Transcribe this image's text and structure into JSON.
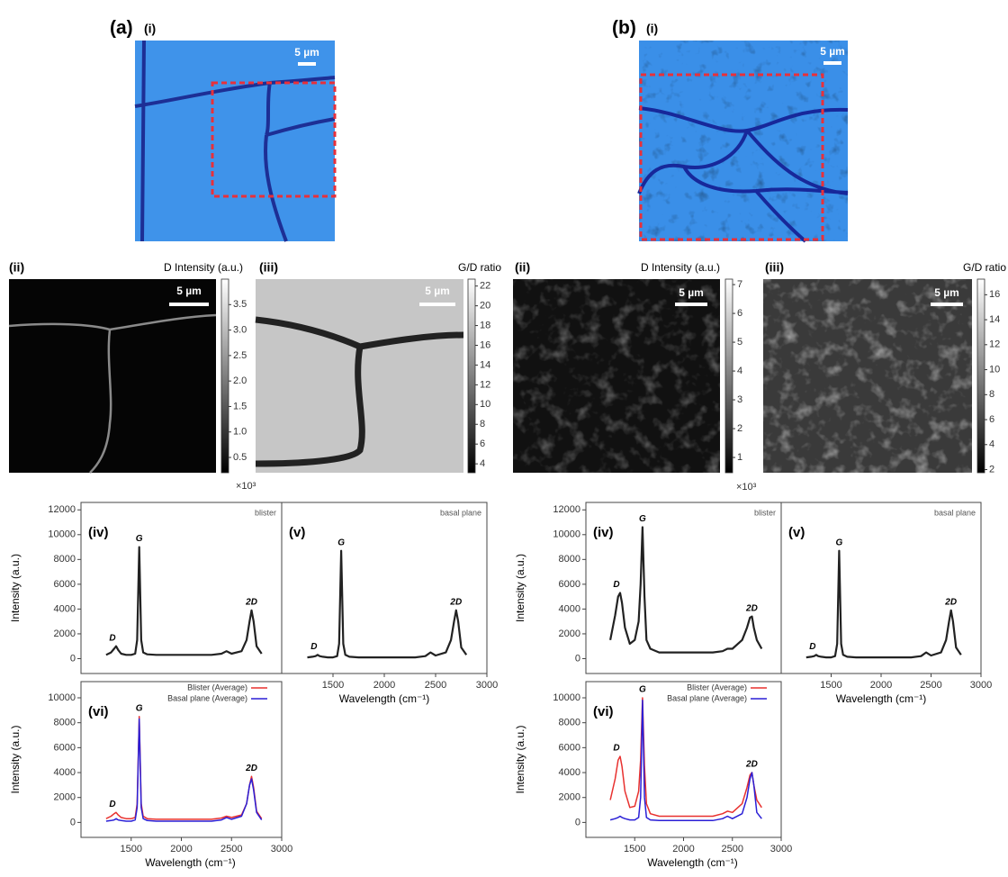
{
  "figure": {
    "panels": [
      {
        "label": "(a)",
        "optical": {
          "label": "(i)",
          "scale": "5 µm"
        },
        "maps": [
          {
            "label": "(ii)",
            "title": "D Intensity (a.u.)",
            "scale": "5 µm",
            "colorbar": {
              "lim": [
                0.2,
                4.0
              ],
              "ticks": [
                0.5,
                {
                  "value": 1,
                  "label": "1.0"
                },
                1.5,
                {
                  "value": 2,
                  "label": "2.0"
                },
                2.5,
                {
                  "value": 3,
                  "label": "3.0"
                },
                3.5
              ]
            },
            "multiplier": "×10³"
          },
          {
            "label": "(iii)",
            "title": "G/D ratio",
            "scale": "5 µm",
            "colorbar": {
              "lim": [
                3.1,
                22.7
              ],
              "ticks": [
                4,
                6,
                8,
                10,
                12,
                14,
                16,
                18,
                20,
                22
              ]
            }
          }
        ]
      },
      {
        "label": "(b)",
        "optical": {
          "label": "(i)",
          "scale": "5 µm"
        },
        "maps": [
          {
            "label": "(ii)",
            "title": "D Intensity (a.u.)",
            "scale": "5 µm",
            "colorbar": {
              "lim": [
                0.47,
                7.19
              ],
              "ticks": [
                1,
                2,
                3,
                4,
                5,
                6,
                7
              ]
            },
            "multiplier": "×10³"
          },
          {
            "label": "(iii)",
            "title": "G/D ratio",
            "scale": "5 µm",
            "colorbar": {
              "lim": [
                1.75,
                17.25
              ],
              "ticks": [
                2,
                4,
                6,
                8,
                10,
                12,
                14,
                16
              ]
            }
          }
        ]
      }
    ]
  },
  "chart_data": [
    {
      "type": "line",
      "panel": "(iv)",
      "note": "blister",
      "peaks": [
        "D",
        "G",
        "2D"
      ],
      "ylabel": "Intensity (a.u.)",
      "x": [
        1250,
        1300,
        1330,
        1350,
        1370,
        1400,
        1450,
        1500,
        1540,
        1560,
        1580,
        1600,
        1620,
        1660,
        1750,
        1900,
        2100,
        2300,
        2400,
        2450,
        2500,
        2600,
        2650,
        2680,
        2700,
        2720,
        2750,
        2800
      ],
      "xlim": [
        1000,
        3000
      ],
      "ylim": [
        -1200,
        12600
      ],
      "yticks": [
        0,
        2000,
        4000,
        6000,
        8000,
        10000,
        12000
      ],
      "series": [
        {
          "color": "#222222",
          "values": [
            300,
            500,
            800,
            1000,
            700,
            400,
            300,
            300,
            400,
            1500,
            9000,
            1500,
            500,
            350,
            300,
            300,
            300,
            300,
            400,
            600,
            400,
            600,
            1500,
            3000,
            3900,
            3000,
            1000,
            400
          ]
        }
      ]
    },
    {
      "type": "line",
      "panel": "(v)",
      "note": "basal plane",
      "peaks": [
        "D",
        "G",
        "2D"
      ],
      "xlabel": "Wavelength (cm⁻¹)",
      "x": [
        1250,
        1300,
        1330,
        1350,
        1370,
        1400,
        1450,
        1500,
        1540,
        1560,
        1580,
        1600,
        1620,
        1660,
        1750,
        1900,
        2100,
        2300,
        2400,
        2450,
        2500,
        2600,
        2650,
        2680,
        2700,
        2720,
        2750,
        2800
      ],
      "xlim": [
        1000,
        3000
      ],
      "ylim": [
        -1200,
        12600
      ],
      "xticks": [
        1500,
        2000,
        2500,
        3000
      ],
      "series": [
        {
          "color": "#222222",
          "values": [
            100,
            150,
            200,
            300,
            200,
            150,
            100,
            100,
            200,
            1200,
            8700,
            1200,
            300,
            150,
            100,
            100,
            100,
            100,
            200,
            500,
            250,
            500,
            1500,
            3000,
            3900,
            3000,
            900,
            300
          ]
        }
      ]
    },
    {
      "type": "line",
      "panel": "(vi)",
      "peaks": [
        "D",
        "G",
        "2D"
      ],
      "ylabel": "Intensity (a.u.)",
      "xlabel": "Wavelength (cm⁻¹)",
      "x": [
        1250,
        1300,
        1330,
        1350,
        1370,
        1400,
        1450,
        1500,
        1540,
        1560,
        1580,
        1600,
        1620,
        1660,
        1750,
        1900,
        2100,
        2300,
        2400,
        2450,
        2500,
        2600,
        2650,
        2680,
        2700,
        2720,
        2750,
        2800
      ],
      "xlim": [
        1000,
        3000
      ],
      "ylim": [
        -1200,
        11300
      ],
      "yticks": [
        0,
        2000,
        4000,
        6000,
        8000,
        10000
      ],
      "xticks": [
        1500,
        2000,
        2500,
        3000
      ],
      "series": [
        {
          "name": "Blister (Average)",
          "color": "#e8312f",
          "values": [
            300,
            500,
            700,
            800,
            600,
            400,
            300,
            300,
            400,
            1500,
            8500,
            1500,
            500,
            300,
            250,
            250,
            250,
            250,
            350,
            500,
            400,
            600,
            1500,
            3000,
            3700,
            2800,
            900,
            300
          ]
        },
        {
          "name": "Basal plane (Average)",
          "color": "#2a1fd6",
          "values": [
            100,
            150,
            200,
            300,
            200,
            150,
            100,
            100,
            200,
            1200,
            8300,
            1200,
            300,
            150,
            100,
            100,
            100,
            100,
            200,
            400,
            250,
            500,
            1500,
            3000,
            3500,
            2600,
            800,
            200
          ]
        }
      ]
    },
    {
      "type": "line",
      "panel": "(iv)",
      "note": "blister",
      "peaks": [
        "D",
        "G",
        "2D"
      ],
      "ylabel": "Intensity (a.u.)",
      "x": [
        1250,
        1300,
        1330,
        1350,
        1370,
        1400,
        1450,
        1500,
        1540,
        1560,
        1580,
        1600,
        1620,
        1660,
        1750,
        1900,
        2100,
        2300,
        2400,
        2450,
        2500,
        2600,
        2650,
        2680,
        2700,
        2720,
        2750,
        2800
      ],
      "xlim": [
        1000,
        3000
      ],
      "ylim": [
        -1200,
        12600
      ],
      "yticks": [
        0,
        2000,
        4000,
        6000,
        8000,
        10000,
        12000
      ],
      "series": [
        {
          "color": "#222222",
          "values": [
            1500,
            3500,
            5000,
            5300,
            4500,
            2500,
            1200,
            1500,
            3000,
            6000,
            10600,
            5000,
            1500,
            800,
            500,
            500,
            500,
            500,
            600,
            800,
            800,
            1500,
            2500,
            3300,
            3400,
            2500,
            1500,
            800
          ]
        }
      ]
    },
    {
      "type": "line",
      "panel": "(v)",
      "note": "basal plane",
      "peaks": [
        "D",
        "G",
        "2D"
      ],
      "xlabel": "Wavelength (cm⁻¹)",
      "x": [
        1250,
        1300,
        1330,
        1350,
        1370,
        1400,
        1450,
        1500,
        1540,
        1560,
        1580,
        1600,
        1620,
        1660,
        1750,
        1900,
        2100,
        2300,
        2400,
        2450,
        2500,
        2600,
        2650,
        2680,
        2700,
        2720,
        2750,
        2800
      ],
      "xlim": [
        1000,
        3000
      ],
      "ylim": [
        -1200,
        12600
      ],
      "xticks": [
        1500,
        2000,
        2500,
        3000
      ],
      "series": [
        {
          "color": "#222222",
          "values": [
            100,
            150,
            200,
            300,
            200,
            150,
            100,
            100,
            200,
            1200,
            8700,
            1200,
            300,
            150,
            100,
            100,
            100,
            100,
            200,
            500,
            250,
            500,
            1500,
            3000,
            3900,
            3000,
            900,
            300
          ]
        }
      ]
    },
    {
      "type": "line",
      "panel": "(vi)",
      "peaks": [
        "D",
        "G",
        "2D"
      ],
      "ylabel": "Intensity (a.u.)",
      "xlabel": "Wavelength (cm⁻¹)",
      "x": [
        1250,
        1300,
        1330,
        1350,
        1370,
        1400,
        1450,
        1500,
        1540,
        1560,
        1580,
        1600,
        1620,
        1660,
        1750,
        1900,
        2100,
        2300,
        2400,
        2450,
        2500,
        2600,
        2650,
        2680,
        2700,
        2720,
        2750,
        2800
      ],
      "xlim": [
        1000,
        3000
      ],
      "ylim": [
        -1200,
        11300
      ],
      "yticks": [
        0,
        2000,
        4000,
        6000,
        8000,
        10000
      ],
      "xticks": [
        1500,
        2000,
        2500,
        3000
      ],
      "series": [
        {
          "name": "Blister (Average)",
          "color": "#e8312f",
          "values": [
            1800,
            3500,
            5000,
            5300,
            4500,
            2500,
            1200,
            1300,
            2500,
            5000,
            10000,
            4500,
            1500,
            700,
            500,
            500,
            500,
            500,
            700,
            900,
            800,
            1500,
            2800,
            3800,
            4000,
            3000,
            1800,
            1200
          ]
        },
        {
          "name": "Basal plane (Average)",
          "color": "#2a1fd6",
          "values": [
            200,
            300,
            400,
            500,
            400,
            300,
            200,
            200,
            400,
            2000,
            9800,
            2000,
            400,
            200,
            150,
            150,
            150,
            150,
            300,
            500,
            300,
            700,
            2000,
            3500,
            4000,
            3000,
            800,
            300
          ]
        }
      ]
    }
  ]
}
